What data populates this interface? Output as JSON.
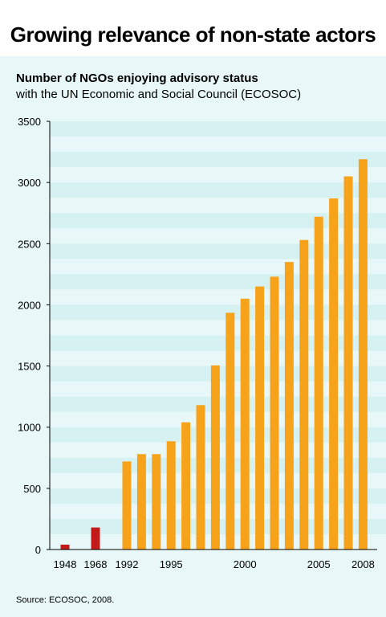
{
  "title": "Growing relevance of non-state actors",
  "subtitle_line1": "Number of NGOs enjoying advisory status",
  "subtitle_line2": "with the UN Economic and Social Council (ECOSOC)",
  "source": "Source: ECOSOC, 2008.",
  "colors": {
    "early_bar": "#c41a1a",
    "bar": "#f7a21b",
    "panel": "#e8f8f8",
    "stripe": "#d6f1f1"
  },
  "chart_data": {
    "type": "bar",
    "title": "",
    "xlabel": "",
    "ylabel": "",
    "ylim": [
      0,
      3500
    ],
    "yticks": [
      0,
      500,
      1000,
      1500,
      2000,
      2500,
      3000,
      3500
    ],
    "grid": false,
    "series": [
      {
        "values": [
          {
            "x": 1948,
            "y": 40,
            "highlight": true
          },
          {
            "x": 1968,
            "y": 180,
            "highlight": true
          },
          {
            "x": 1992,
            "y": 720
          },
          {
            "x": 1993,
            "y": 780
          },
          {
            "x": 1994,
            "y": 780
          },
          {
            "x": 1995,
            "y": 885
          },
          {
            "x": 1996,
            "y": 1040
          },
          {
            "x": 1997,
            "y": 1180
          },
          {
            "x": 1998,
            "y": 1505
          },
          {
            "x": 1999,
            "y": 1935
          },
          {
            "x": 2000,
            "y": 2050
          },
          {
            "x": 2001,
            "y": 2150
          },
          {
            "x": 2002,
            "y": 2230
          },
          {
            "x": 2003,
            "y": 2350
          },
          {
            "x": 2004,
            "y": 2530
          },
          {
            "x": 2005,
            "y": 2720
          },
          {
            "x": 2006,
            "y": 2870
          },
          {
            "x": 2007,
            "y": 3050
          },
          {
            "x": 2008,
            "y": 3190
          }
        ]
      }
    ],
    "x_tick_labels": [
      "1948",
      "1968",
      "1992",
      "1995",
      "2000",
      "2005",
      "2008"
    ]
  }
}
